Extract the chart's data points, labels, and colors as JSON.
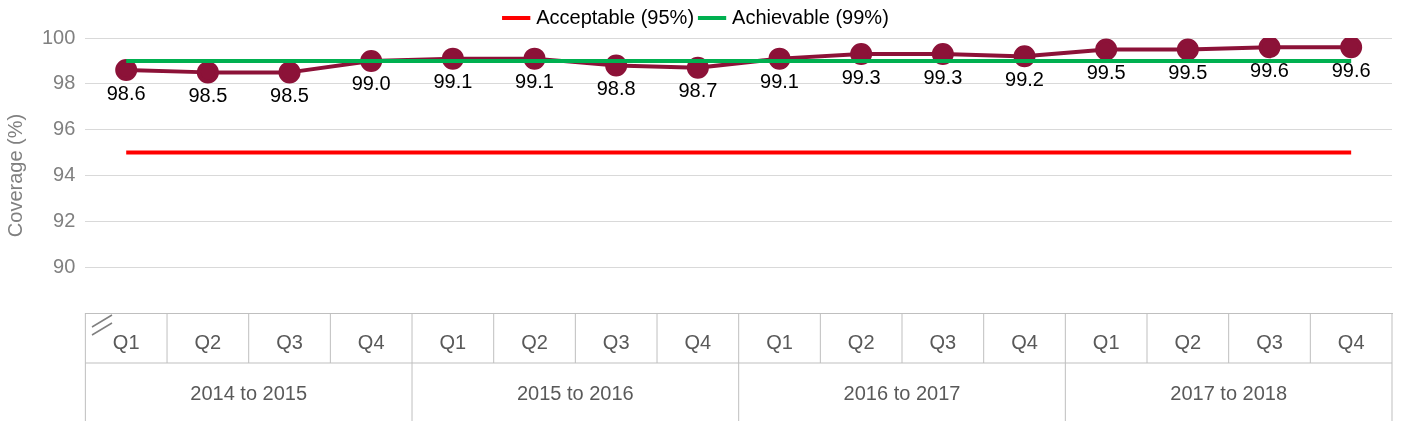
{
  "chart_data": {
    "type": "line",
    "ylabel": "Coverage (%)",
    "categories": [
      "Q1",
      "Q2",
      "Q3",
      "Q4",
      "Q1",
      "Q2",
      "Q3",
      "Q4",
      "Q1",
      "Q2",
      "Q3",
      "Q4",
      "Q1",
      "Q2",
      "Q3",
      "Q4"
    ],
    "series": [
      {
        "color": "#8c1238",
        "marker": "circle",
        "values": [
          98.6,
          98.5,
          98.5,
          99.0,
          99.1,
          99.1,
          98.8,
          98.7,
          99.1,
          99.3,
          99.3,
          99.2,
          99.5,
          99.5,
          99.6,
          99.6
        ],
        "value_labels": [
          "98.6",
          "98.5",
          "98.5",
          "99.0",
          "99.1",
          "99.1",
          "98.8",
          "98.7",
          "99.1",
          "99.3",
          "99.3",
          "99.2",
          "99.5",
          "99.5",
          "99.6",
          "99.6"
        ]
      },
      {
        "name": "Acceptable (95%)",
        "color": "#ff0000",
        "marker": "none",
        "values": [
          95,
          95,
          95,
          95,
          95,
          95,
          95,
          95,
          95,
          95,
          95,
          95,
          95,
          95,
          95,
          95
        ]
      },
      {
        "name": "Achievable (99%)",
        "color": "#00b050",
        "marker": "none",
        "values": [
          99,
          99,
          99,
          99,
          99,
          99,
          99,
          99,
          99,
          99,
          99,
          99,
          99,
          99,
          99,
          99
        ]
      }
    ],
    "annotations": [
      "2014 to 2015",
      "2015 to 2016",
      "2016 to 2017",
      "2017 to 2018"
    ],
    "ylim": [
      88,
      100
    ],
    "yticks": [
      90,
      92,
      94,
      96,
      98,
      100
    ],
    "grid": "y",
    "legend": "top",
    "line_style": "solid"
  }
}
